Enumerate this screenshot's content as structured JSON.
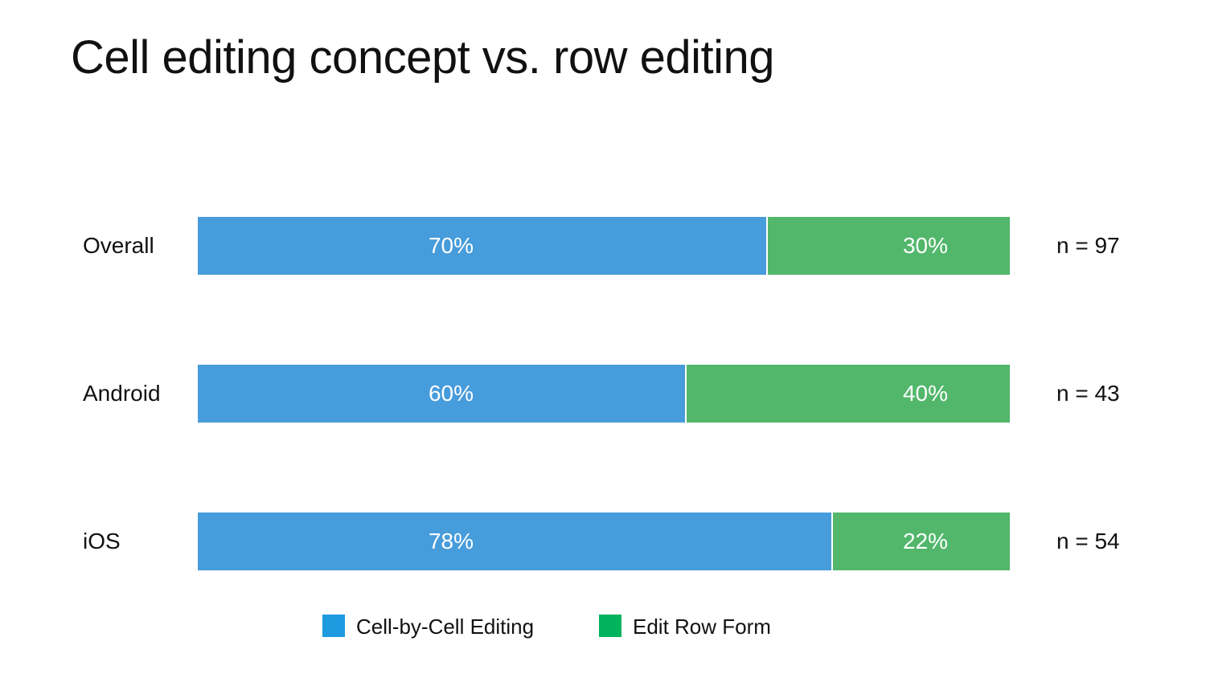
{
  "slide": {
    "title": "Cell editing concept vs. row editing"
  },
  "chart_data": {
    "type": "bar",
    "orientation": "horizontal",
    "stacked": true,
    "percent_stacked": true,
    "title": "Cell editing concept vs. row editing",
    "categories": [
      "Overall",
      "Android",
      "iOS"
    ],
    "series": [
      {
        "name": "Cell-by-Cell Editing",
        "color": "#479cdb",
        "legend_color": "#1e9ae0",
        "values": [
          70,
          60,
          78
        ],
        "labels": [
          "70%",
          "60%",
          "78%"
        ]
      },
      {
        "name": "Edit Row Form",
        "color": "#52b76b",
        "legend_color": "#00b35c",
        "values": [
          30,
          40,
          22
        ],
        "labels": [
          "30%",
          "40%",
          "22%"
        ]
      }
    ],
    "sample_sizes": [
      "n = 97",
      "n = 43",
      "n = 54"
    ],
    "xlim": [
      0,
      100
    ],
    "grid": false,
    "legend": "bottom"
  }
}
